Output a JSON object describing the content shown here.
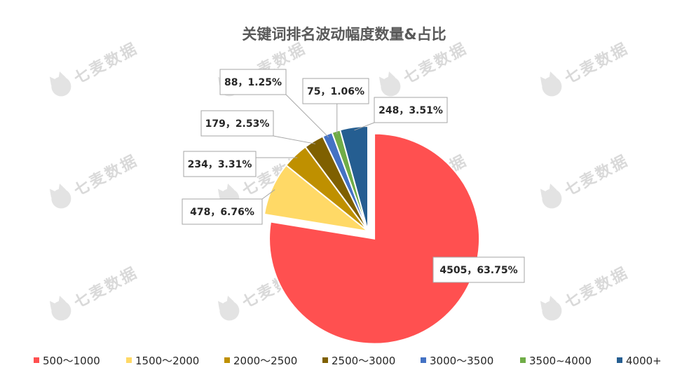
{
  "watermark": {
    "text": "七麦数据"
  },
  "chart_data": {
    "type": "pie",
    "title": "关键词排名波动幅度数量&占比",
    "legend_position": "bottom",
    "slices": [
      {
        "label": "500～1000",
        "value": 4505,
        "percent": "63.75%",
        "color": "#ff5050",
        "data_label": "4505，63.75%"
      },
      {
        "label": "1500～2000",
        "value": 478,
        "percent": "6.76%",
        "color": "#ffd966",
        "data_label": "478，6.76%"
      },
      {
        "label": "2000～2500",
        "value": 234,
        "percent": "3.31%",
        "color": "#bf9000",
        "data_label": "234，3.31%"
      },
      {
        "label": "2500～3000",
        "value": 179,
        "percent": "2.53%",
        "color": "#7f6000",
        "data_label": "179，2.53%"
      },
      {
        "label": "3000～3500",
        "value": 88,
        "percent": "1.25%",
        "color": "#4472c4",
        "data_label": "88，1.25%"
      },
      {
        "label": "3500~4000",
        "value": 75,
        "percent": "1.06%",
        "color": "#70ad47",
        "data_label": "75，1.06%"
      },
      {
        "label": "4000+",
        "value": 248,
        "percent": "3.51%",
        "color": "#255e91",
        "data_label": "248，3.51%"
      }
    ]
  }
}
